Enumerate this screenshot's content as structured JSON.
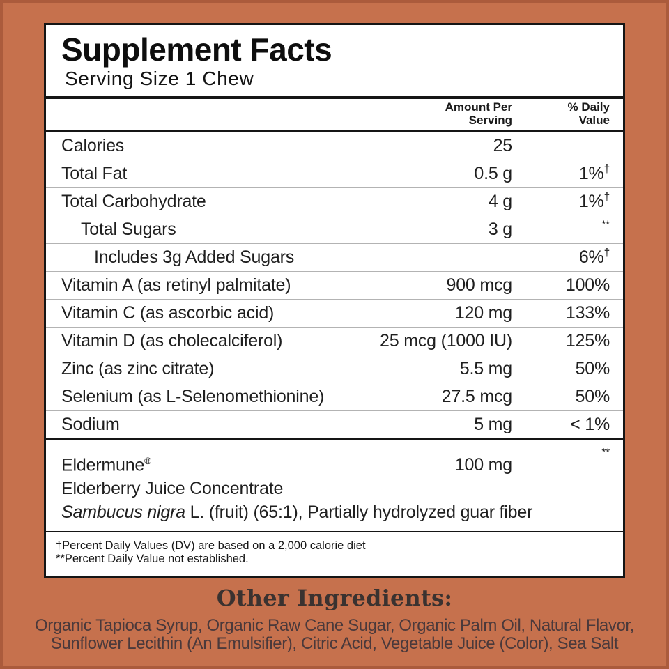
{
  "colors": {
    "background": "#C6714D",
    "label_background": "#FFFFFF",
    "rule_black": "#151515",
    "row_divider": "#B3B3B3",
    "heading_text": "#3A3230",
    "ingredients_text": "#4A393B"
  },
  "header": {
    "title": "Supplement Facts",
    "serving": "Serving Size 1 Chew"
  },
  "columns": {
    "amount_line1": "Amount Per",
    "amount_line2": "Serving",
    "dv_line1": "% Daily",
    "dv_line2": "Value"
  },
  "table": {
    "rows": [
      {
        "name": "Calories",
        "amount": "25",
        "dv": ""
      },
      {
        "name": "Total Fat",
        "amount": "0.5 g",
        "dv": "1%",
        "dv_sup": "†"
      },
      {
        "name": "Total Carbohydrate",
        "amount": "4 g",
        "dv": "1%",
        "dv_sup": "†"
      },
      {
        "name": "Total Sugars",
        "amount": "3 g",
        "dv": "",
        "dv_sup": "**"
      },
      {
        "name": "Includes 3g Added Sugars",
        "amount": "",
        "dv": "6%",
        "dv_sup": "†"
      },
      {
        "name": "Vitamin A (as retinyl palmitate)",
        "amount": "900 mcg",
        "dv": "100%"
      },
      {
        "name": "Vitamin C (as ascorbic acid)",
        "amount": "120 mg",
        "dv": "133%"
      },
      {
        "name": "Vitamin D (as cholecalciferol)",
        "amount": "25 mcg (1000 IU)",
        "dv": "125%"
      },
      {
        "name": "Zinc (as zinc citrate)",
        "amount": "5.5 mg",
        "dv": "50%"
      },
      {
        "name": "Selenium (as L-Selenomethionine)",
        "amount": "27.5 mcg",
        "dv": "50%"
      },
      {
        "name": "Sodium",
        "amount": "5 mg",
        "dv": "< 1%"
      }
    ]
  },
  "blend": {
    "name": "Eldermune",
    "reg": "®",
    "amount": "100 mg",
    "dv_sup": "**",
    "line2": "Elderberry Juice Concentrate",
    "latin_italic": "Sambucus nigra",
    "latin_rest": " L. (fruit) (65:1), Partially hydrolyzed guar fiber"
  },
  "footnotes": [
    "†Percent Daily Values (DV) are based on a 2,000 calorie diet",
    "**Percent Daily Value not established."
  ],
  "other_ingredients": {
    "heading": "Other Ingredients:",
    "line1": "Organic Tapioca Syrup, Organic Raw Cane Sugar, Organic Palm Oil, Natural Flavor,",
    "line2": "Sunflower Lecithin (An Emulsifier), Citric Acid, Vegetable Juice (Color), Sea Salt"
  }
}
